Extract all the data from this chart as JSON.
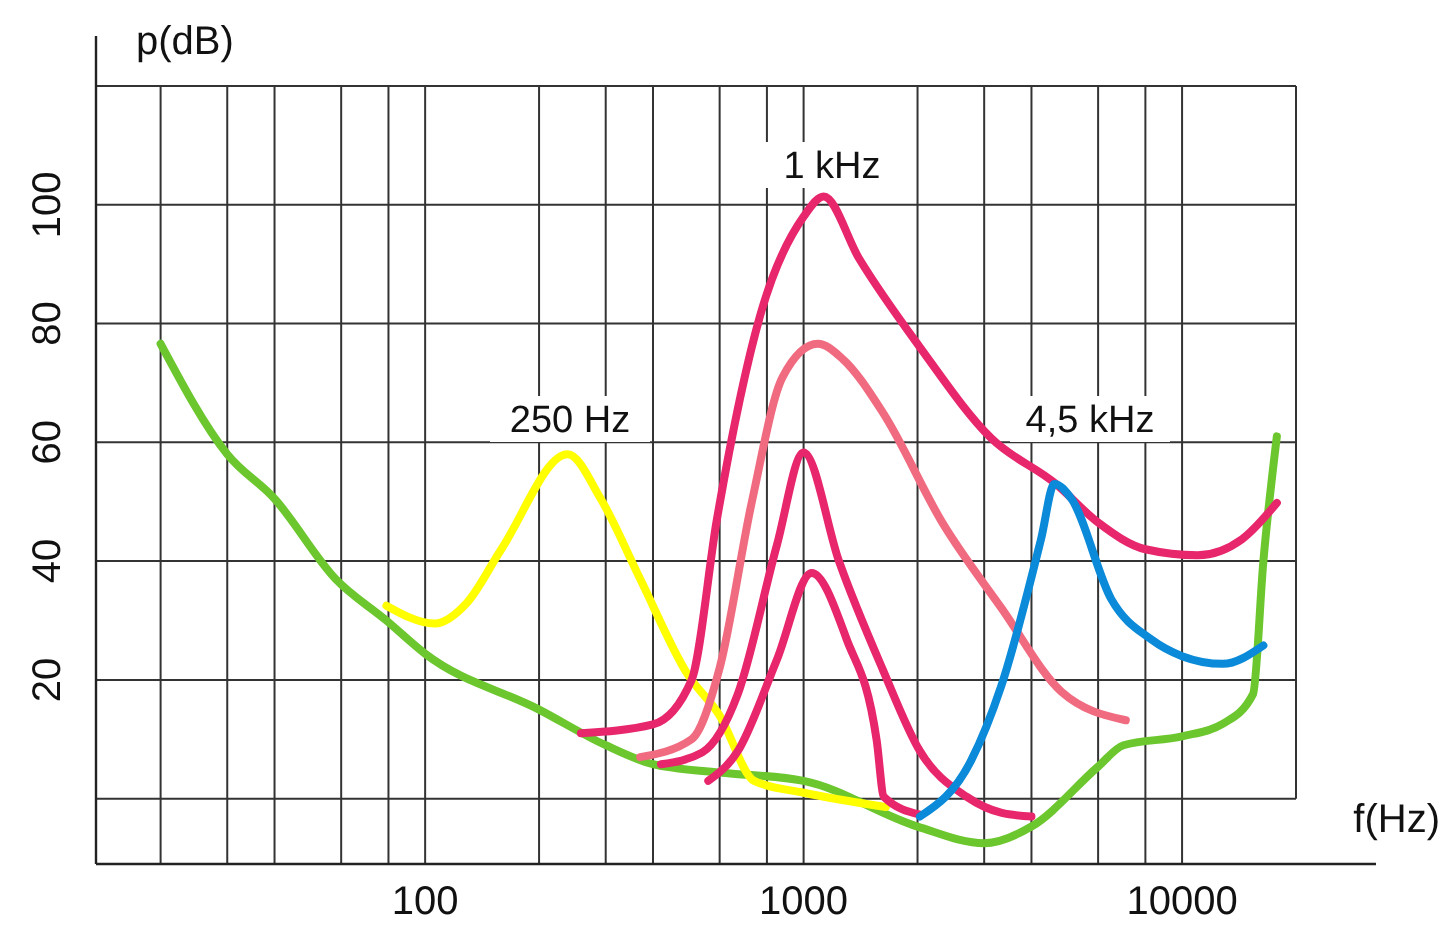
{
  "chart_data": {
    "type": "line",
    "xlabel": "f(Hz)",
    "ylabel": "p(dB)",
    "log": "x",
    "grid": true,
    "xlim": [
      13.5,
      20000
    ],
    "ylim": [
      -11,
      120
    ],
    "xticks": [
      {
        "value": 20,
        "label": null
      },
      {
        "value": 30,
        "label": null
      },
      {
        "value": 40,
        "label": null
      },
      {
        "value": 60,
        "label": null
      },
      {
        "value": 80,
        "label": null
      },
      100,
      {
        "value": 200,
        "label": null
      },
      {
        "value": 300,
        "label": null
      },
      {
        "value": 400,
        "label": null
      },
      {
        "value": 600,
        "label": null
      },
      {
        "value": 800,
        "label": null
      },
      1000,
      {
        "value": 2000,
        "label": null
      },
      {
        "value": 3000,
        "label": null
      },
      {
        "value": 4000,
        "label": null
      },
      {
        "value": 6000,
        "label": null
      },
      {
        "value": 8000,
        "label": null
      },
      10000
    ],
    "yticks": [
      {
        "value": 0,
        "label": null
      },
      20,
      40,
      60,
      80,
      100,
      {
        "value": 120,
        "label": null
      }
    ],
    "annotations": [
      "250 Hz",
      "1 kHz",
      "4,5 kHz"
    ],
    "series": [
      {
        "color": "#6cc62e",
        "x": [
          20,
          30,
          40,
          58,
          79,
          100,
          200,
          300,
          400,
          600,
          1000,
          2000,
          3000,
          4000,
          6000,
          7000,
          10000,
          12800,
          15400,
          16400,
          17800
        ],
        "values": [
          76.6,
          58,
          50.5,
          37,
          30,
          24.4,
          15,
          9,
          5.8,
          4.4,
          3,
          -4.7,
          -7.5,
          -4.7,
          5.4,
          9,
          10.5,
          12.6,
          17.6,
          40,
          61
        ]
      },
      {
        "color": "#ffff00",
        "x": [
          79,
          106,
          129,
          159,
          238,
          291,
          370,
          493,
          600,
          740,
          1000,
          1650
        ],
        "values": [
          32.5,
          29.5,
          33,
          42,
          58,
          50.5,
          37,
          21,
          14,
          3,
          1,
          -1.4
        ]
      },
      {
        "color": "#e8266c",
        "x": [
          258,
          400,
          506,
          590,
          773,
          1000,
          1130,
          1400,
          2030,
          3130,
          4640,
          6000,
          8000,
          11000,
          14400,
          17800
        ],
        "values": [
          11,
          12.5,
          20,
          47,
          82,
          98,
          101.4,
          91,
          76,
          60.7,
          53,
          46.5,
          42,
          41,
          43.7,
          49.8
        ]
      },
      {
        "color": "#f06b80",
        "x": [
          370,
          506,
          600,
          730,
          880,
          1090,
          1270,
          1620,
          2330,
          3340,
          4800,
          7100
        ],
        "values": [
          7,
          10,
          22,
          50,
          71,
          76.6,
          74,
          65,
          46.4,
          32,
          18,
          13.2
        ]
      },
      {
        "color": "#e8266c",
        "x": [
          420,
          540,
          670,
          850,
          1000,
          1240,
          1620,
          2030,
          2700,
          3340,
          4000
        ],
        "values": [
          5.8,
          7.8,
          17.6,
          42.7,
          58.3,
          40,
          21.7,
          8,
          0.3,
          -2.4,
          -3
        ]
      },
      {
        "color": "#e8266c",
        "x": [
          560,
          670,
          850,
          1050,
          1300,
          1560,
          1630,
          2030
        ],
        "values": [
          3,
          8,
          23.4,
          38,
          26.8,
          9.8,
          0.3,
          -2.7
        ]
      },
      {
        "color": "#0a8ad8",
        "x": [
          2030,
          2770,
          3330,
          4240,
          4600,
          5100,
          6500,
          8300,
          10000,
          12800,
          16400
        ],
        "values": [
          -3,
          6.4,
          19,
          43.7,
          53,
          50.5,
          33.6,
          26.8,
          24,
          22.7,
          25.8
        ]
      }
    ]
  }
}
